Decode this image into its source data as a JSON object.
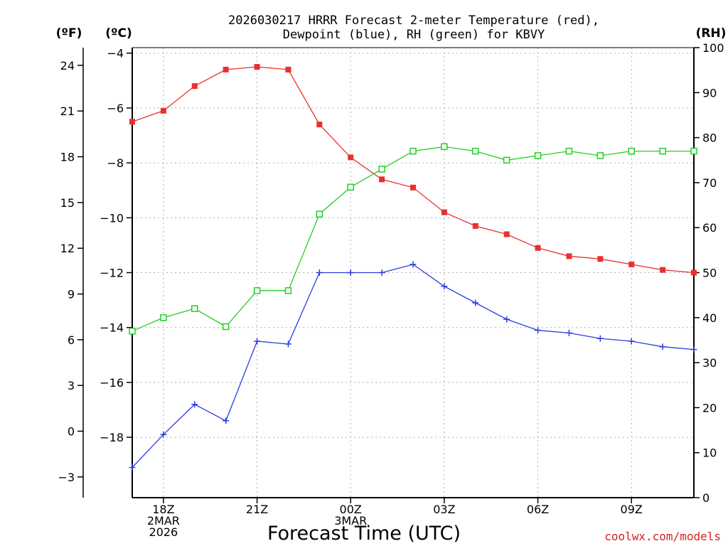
{
  "chart_data": {
    "type": "line",
    "title_lines": [
      "2026030217 HRRR Forecast 2-meter Temperature (red),",
      "Dewpoint (blue), RH (green) for KBVY"
    ],
    "axis_units": {
      "left_outer": "(ºF)",
      "left_inner": "(ºC)",
      "right": "(RH)"
    },
    "xlabel": "Forecast Time (UTC)",
    "credit": "coolwx.com/models",
    "x_hours": [
      17,
      18,
      19,
      20,
      21,
      22,
      23,
      24,
      25,
      26,
      27,
      28,
      29,
      30,
      31,
      32,
      33,
      34,
      35
    ],
    "x_range": [
      17,
      35
    ],
    "x_ticks": [
      {
        "hour": 18,
        "lines": [
          "18Z",
          "2MAR",
          "2026"
        ]
      },
      {
        "hour": 21,
        "lines": [
          "21Z"
        ]
      },
      {
        "hour": 24,
        "lines": [
          "00Z",
          "3MAR"
        ]
      },
      {
        "hour": 27,
        "lines": [
          "03Z"
        ]
      },
      {
        "hour": 30,
        "lines": [
          "06Z"
        ]
      },
      {
        "hour": 33,
        "lines": [
          "09Z"
        ]
      }
    ],
    "celsius_axis": {
      "range": [
        -20.2,
        -3.8
      ],
      "ticks": [
        -4,
        -6,
        -8,
        -10,
        -12,
        -14,
        -16,
        -18
      ]
    },
    "fahrenheit_axis": {
      "ticks": [
        24,
        21,
        18,
        15,
        12,
        9,
        6,
        3,
        0,
        -3
      ]
    },
    "rh_axis": {
      "range": [
        0,
        100
      ],
      "ticks": [
        0,
        10,
        20,
        30,
        40,
        50,
        60,
        70,
        80,
        90,
        100
      ]
    },
    "series": [
      {
        "name": "Temperature",
        "color": "#e83030",
        "marker": "filled-square",
        "axis": "celsius",
        "values": [
          -6.5,
          -6.1,
          -5.2,
          -4.6,
          -4.5,
          -4.6,
          -6.6,
          -7.8,
          -8.6,
          -8.9,
          -9.8,
          -10.3,
          -10.6,
          -11.1,
          -11.4,
          -11.5,
          -11.7,
          -11.9,
          -12.0
        ]
      },
      {
        "name": "Dewpoint",
        "color": "#2a3ee0",
        "marker": "plus",
        "axis": "celsius",
        "values": [
          -19.1,
          -17.9,
          -16.8,
          -17.4,
          -14.5,
          -14.6,
          -12.0,
          -12.0,
          -12.0,
          -11.7,
          -12.5,
          -13.1,
          -13.7,
          -14.1,
          -14.2,
          -14.4,
          -14.5,
          -14.7,
          -14.8
        ]
      },
      {
        "name": "RH",
        "color": "#22d022",
        "marker": "open-square",
        "axis": "rh",
        "values": [
          37,
          40,
          42,
          38,
          46,
          46,
          63,
          69,
          73,
          77,
          78,
          77,
          75,
          76,
          77,
          76,
          77,
          77,
          77
        ]
      }
    ]
  }
}
